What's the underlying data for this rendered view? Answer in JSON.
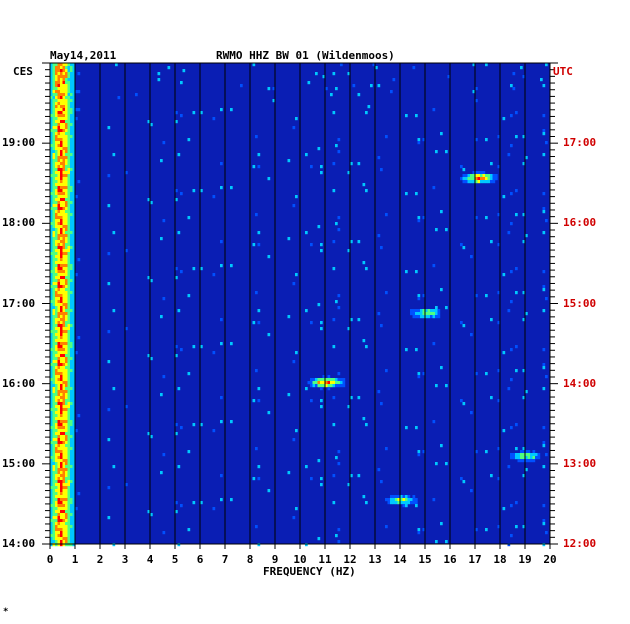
{
  "chart_data": {
    "type": "heatmap",
    "title": "RWMO HHZ BW 01 (Wildenmoos)",
    "date": "May14,2011",
    "left_timezone": "CES",
    "right_timezone": "UTC",
    "xlabel": "FREQUENCY (HZ)",
    "xlim": [
      0,
      20
    ],
    "x_ticks": [
      "0",
      "1",
      "2",
      "3",
      "4",
      "5",
      "6",
      "7",
      "8",
      "9",
      "10",
      "11",
      "12",
      "13",
      "14",
      "15",
      "16",
      "17",
      "18",
      "19",
      "20"
    ],
    "y_ticks_left": [
      "19:00",
      "18:00",
      "17:00",
      "16:00",
      "15:00",
      "14:00"
    ],
    "y_ticks_right": [
      "17:00",
      "16:00",
      "15:00",
      "14:00",
      "13:00",
      "12:00"
    ],
    "time_range_left_hours": [
      14.0,
      20.0
    ],
    "grid": true,
    "colormap": [
      "#00008c",
      "#0000c8",
      "#0050ff",
      "#00c8ff",
      "#50ff80",
      "#ffff00",
      "#ff8000",
      "#ff0000"
    ],
    "background_color": "#0a1eb4",
    "hot_spots": [
      {
        "freq": 17.1,
        "time": "18:35",
        "level": "high"
      },
      {
        "freq": 11.0,
        "time": "16:02",
        "level": "high"
      },
      {
        "freq": 15.0,
        "time": "16:54",
        "level": "medium"
      },
      {
        "freq": 14.0,
        "time": "14:34",
        "level": "medium"
      },
      {
        "freq": 19.0,
        "time": "15:07",
        "level": "medium"
      }
    ]
  },
  "footer_mark": "*"
}
